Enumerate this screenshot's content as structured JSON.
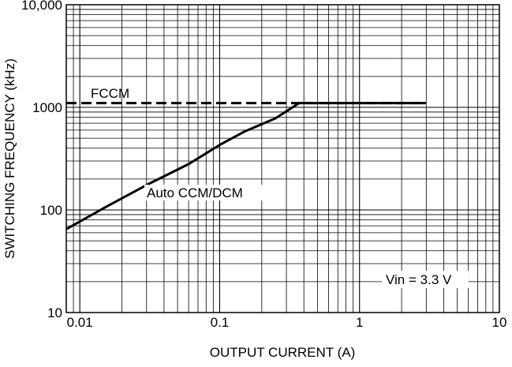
{
  "chart_data": {
    "type": "line",
    "xlabel": "OUTPUT CURRENT (A)",
    "ylabel": "SWITCHING FREQUENCY (kHz)",
    "x_scale": "log",
    "y_scale": "log",
    "xlim": [
      0.008,
      10
    ],
    "ylim": [
      10,
      10000
    ],
    "grid": true,
    "x_ticks": [
      {
        "value": 0.01,
        "label": "0.01"
      },
      {
        "value": 0.1,
        "label": "0.1"
      },
      {
        "value": 1,
        "label": "1"
      },
      {
        "value": 10,
        "label": "10"
      }
    ],
    "y_ticks": [
      {
        "value": 10,
        "label": "10"
      },
      {
        "value": 100,
        "label": "100"
      },
      {
        "value": 1000,
        "label": "1000"
      },
      {
        "value": 10000,
        "label": "10,000"
      }
    ],
    "series": [
      {
        "name": "FCCM",
        "style": "dashed",
        "x": [
          0.008,
          0.4,
          3
        ],
        "y": [
          1100,
          1100,
          1100
        ]
      },
      {
        "name": "Auto CCM/DCM",
        "style": "solid",
        "x": [
          0.008,
          0.015,
          0.03,
          0.06,
          0.1,
          0.15,
          0.25,
          0.37,
          1,
          3
        ],
        "y": [
          65,
          105,
          175,
          280,
          430,
          580,
          780,
          1100,
          1100,
          1100
        ]
      }
    ],
    "annotations": [
      {
        "text": "FCCM",
        "series": "FCCM"
      },
      {
        "text": "Auto CCM/DCM",
        "series": "Auto CCM/DCM"
      },
      {
        "text": "Vin = 3.3 V"
      }
    ],
    "colors": {
      "line": "#000000",
      "grid": "#000000",
      "background": "#ffffff"
    }
  }
}
